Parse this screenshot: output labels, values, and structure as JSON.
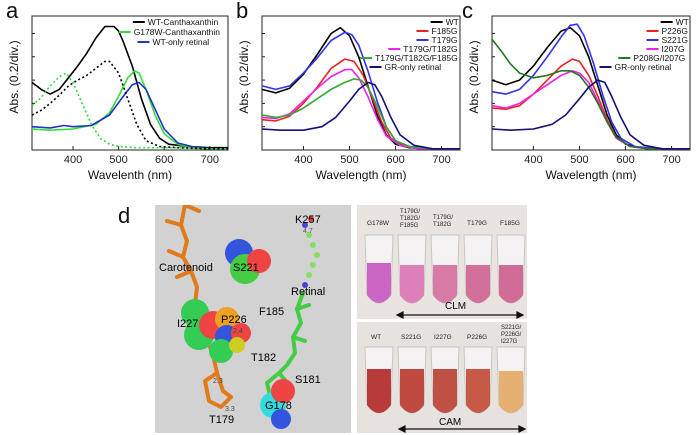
{
  "panel_labels": [
    "a",
    "b",
    "c",
    "d"
  ],
  "chart_data": [
    {
      "type": "line",
      "panel": "a",
      "xlabel": "Wavelenth (nm)",
      "ylabel": "Abs. (0.2/div.)",
      "xlim": [
        310,
        740
      ],
      "ylim": [
        0,
        1.15
      ],
      "xticks": [
        400,
        500,
        600,
        700
      ],
      "legend_position": "top-right",
      "series": [
        {
          "name": "WT-Canthaxanthin",
          "color": "#000000",
          "style": "solid",
          "x": [
            310,
            330,
            350,
            370,
            390,
            410,
            430,
            450,
            470,
            490,
            500,
            510,
            530,
            550,
            570,
            590,
            610,
            650,
            700,
            740
          ],
          "y": [
            0.58,
            0.52,
            0.48,
            0.52,
            0.62,
            0.72,
            0.83,
            0.96,
            1.06,
            1.06,
            1.02,
            0.93,
            0.72,
            0.44,
            0.22,
            0.1,
            0.05,
            0.03,
            0.02,
            0.02
          ]
        },
        {
          "name": "G178W-Canthaxanthin",
          "color": "#33dd33",
          "style": "solid",
          "x": [
            310,
            350,
            400,
            450,
            480,
            500,
            520,
            535,
            545,
            560,
            580,
            600,
            630,
            660,
            700,
            740
          ],
          "y": [
            0.18,
            0.17,
            0.18,
            0.22,
            0.32,
            0.46,
            0.62,
            0.68,
            0.66,
            0.52,
            0.3,
            0.14,
            0.05,
            0.02,
            0.01,
            0.01
          ]
        },
        {
          "name": "WT-only retinal",
          "color": "#2233cc",
          "style": "solid",
          "x": [
            310,
            350,
            380,
            400,
            440,
            480,
            510,
            530,
            545,
            560,
            580,
            600,
            630,
            670,
            700,
            740
          ],
          "y": [
            0.2,
            0.19,
            0.21,
            0.2,
            0.21,
            0.3,
            0.46,
            0.56,
            0.58,
            0.52,
            0.35,
            0.18,
            0.06,
            0.02,
            0.01,
            0.01
          ]
        },
        {
          "name": "",
          "color": "#000000",
          "style": "dotted",
          "x": [
            310,
            330,
            350,
            370,
            390,
            410,
            430,
            450,
            470,
            480,
            500,
            520,
            540,
            560,
            590,
            630,
            700,
            740
          ],
          "y": [
            0.3,
            0.34,
            0.4,
            0.47,
            0.55,
            0.6,
            0.64,
            0.7,
            0.76,
            0.76,
            0.66,
            0.44,
            0.22,
            0.08,
            0.03,
            0.02,
            0.01,
            0.01
          ]
        },
        {
          "name": "",
          "color": "#33dd33",
          "style": "dotted",
          "x": [
            310,
            330,
            350,
            370,
            385,
            400,
            420,
            440,
            460,
            480,
            500,
            540,
            580,
            640,
            700,
            740
          ],
          "y": [
            0.38,
            0.45,
            0.55,
            0.63,
            0.66,
            0.58,
            0.4,
            0.22,
            0.1,
            0.05,
            0.03,
            0.02,
            0.02,
            0.02,
            0.01,
            0.01
          ]
        }
      ]
    },
    {
      "type": "line",
      "panel": "b",
      "xlabel": "Wavelength (nm)",
      "ylabel": "Abs. (0.2/div.)",
      "xlim": [
        310,
        740
      ],
      "ylim": [
        0,
        1.15
      ],
      "xticks": [
        400,
        500,
        600,
        700
      ],
      "legend_position": "top-right",
      "series": [
        {
          "name": "WT",
          "color": "#000000",
          "style": "solid",
          "x": [
            310,
            340,
            370,
            400,
            430,
            460,
            480,
            500,
            520,
            540,
            560,
            580,
            600,
            630,
            680,
            740
          ],
          "y": [
            0.52,
            0.49,
            0.53,
            0.65,
            0.82,
            1.0,
            1.05,
            0.98,
            0.8,
            0.55,
            0.3,
            0.13,
            0.05,
            0.02,
            0.01,
            0.01
          ]
        },
        {
          "name": "F185G",
          "color": "#ee2222",
          "style": "solid",
          "x": [
            310,
            340,
            370,
            400,
            430,
            460,
            490,
            510,
            530,
            550,
            570,
            590,
            620,
            660,
            700,
            740
          ],
          "y": [
            0.26,
            0.25,
            0.29,
            0.4,
            0.54,
            0.7,
            0.78,
            0.76,
            0.64,
            0.44,
            0.24,
            0.1,
            0.03,
            0.01,
            0.01,
            0.01
          ]
        },
        {
          "name": "T179G",
          "color": "#3333ee",
          "style": "solid",
          "x": [
            310,
            340,
            370,
            400,
            430,
            460,
            490,
            505,
            520,
            540,
            560,
            580,
            600,
            630,
            680,
            740
          ],
          "y": [
            0.55,
            0.52,
            0.55,
            0.66,
            0.79,
            0.94,
            1.01,
            0.99,
            0.9,
            0.68,
            0.42,
            0.2,
            0.08,
            0.03,
            0.01,
            0.01
          ]
        },
        {
          "name": "T179G/T182G",
          "color": "#ee22ee",
          "style": "solid",
          "x": [
            310,
            340,
            370,
            400,
            430,
            460,
            490,
            505,
            520,
            540,
            560,
            580,
            610,
            650,
            700,
            740
          ],
          "y": [
            0.28,
            0.27,
            0.31,
            0.42,
            0.53,
            0.63,
            0.69,
            0.69,
            0.62,
            0.46,
            0.27,
            0.12,
            0.04,
            0.01,
            0.01,
            0.01
          ]
        },
        {
          "name": "T179G/T182G/F185G",
          "color": "#33aa33",
          "style": "solid",
          "x": [
            310,
            340,
            370,
            400,
            430,
            460,
            490,
            510,
            525,
            540,
            560,
            580,
            600,
            630,
            680,
            740
          ],
          "y": [
            0.3,
            0.28,
            0.3,
            0.36,
            0.44,
            0.52,
            0.58,
            0.61,
            0.6,
            0.54,
            0.38,
            0.2,
            0.08,
            0.03,
            0.01,
            0.01
          ]
        },
        {
          "name": "GR-only retinal",
          "color": "#111177",
          "style": "solid",
          "x": [
            310,
            350,
            400,
            440,
            470,
            500,
            520,
            540,
            555,
            570,
            590,
            610,
            640,
            680,
            740
          ],
          "y": [
            0.18,
            0.17,
            0.17,
            0.2,
            0.28,
            0.42,
            0.52,
            0.58,
            0.56,
            0.46,
            0.28,
            0.13,
            0.04,
            0.01,
            0.01
          ]
        }
      ]
    },
    {
      "type": "line",
      "panel": "c",
      "xlabel": "Wavelength (nm)",
      "ylabel": "Abs. (0.2/div.)",
      "xlim": [
        310,
        740
      ],
      "ylim": [
        0,
        1.15
      ],
      "xticks": [
        400,
        500,
        600,
        700
      ],
      "legend_position": "top-right",
      "series": [
        {
          "name": "WT",
          "color": "#000000",
          "style": "solid",
          "x": [
            310,
            340,
            370,
            400,
            430,
            460,
            480,
            500,
            520,
            540,
            560,
            580,
            600,
            630,
            680,
            740
          ],
          "y": [
            0.6,
            0.56,
            0.6,
            0.72,
            0.88,
            1.02,
            1.05,
            0.98,
            0.8,
            0.55,
            0.3,
            0.13,
            0.05,
            0.02,
            0.01,
            0.01
          ]
        },
        {
          "name": "P226G",
          "color": "#ee2222",
          "style": "solid",
          "x": [
            310,
            340,
            370,
            400,
            430,
            460,
            485,
            500,
            520,
            540,
            560,
            580,
            610,
            650,
            700,
            740
          ],
          "y": [
            0.36,
            0.35,
            0.38,
            0.48,
            0.6,
            0.72,
            0.78,
            0.76,
            0.64,
            0.46,
            0.26,
            0.11,
            0.03,
            0.01,
            0.01,
            0.01
          ]
        },
        {
          "name": "S221G",
          "color": "#3333ee",
          "style": "solid",
          "x": [
            310,
            340,
            370,
            400,
            430,
            460,
            480,
            495,
            510,
            530,
            550,
            570,
            590,
            620,
            670,
            740
          ],
          "y": [
            0.5,
            0.48,
            0.52,
            0.64,
            0.8,
            0.97,
            1.07,
            1.08,
            0.98,
            0.75,
            0.48,
            0.24,
            0.1,
            0.03,
            0.01,
            0.01
          ]
        },
        {
          "name": "I207G",
          "color": "#ee22ee",
          "style": "solid",
          "x": [
            310,
            340,
            370,
            400,
            430,
            460,
            485,
            500,
            520,
            540,
            560,
            580,
            610,
            650,
            700,
            740
          ],
          "y": [
            0.38,
            0.36,
            0.4,
            0.48,
            0.56,
            0.64,
            0.68,
            0.66,
            0.58,
            0.42,
            0.24,
            0.1,
            0.03,
            0.01,
            0.01,
            0.01
          ]
        },
        {
          "name": "P208G/I207G",
          "color": "#227722",
          "style": "solid",
          "x": [
            310,
            330,
            350,
            370,
            400,
            430,
            460,
            480,
            500,
            520,
            540,
            560,
            580,
            610,
            650,
            740
          ],
          "y": [
            0.95,
            0.85,
            0.74,
            0.66,
            0.62,
            0.64,
            0.68,
            0.68,
            0.64,
            0.54,
            0.4,
            0.24,
            0.11,
            0.03,
            0.01,
            0.01
          ]
        },
        {
          "name": "GR-only retinal",
          "color": "#111177",
          "style": "solid",
          "x": [
            310,
            350,
            400,
            440,
            470,
            500,
            520,
            540,
            555,
            570,
            590,
            610,
            640,
            680,
            740
          ],
          "y": [
            0.18,
            0.17,
            0.18,
            0.22,
            0.3,
            0.44,
            0.54,
            0.6,
            0.58,
            0.46,
            0.28,
            0.13,
            0.04,
            0.01,
            0.01
          ]
        }
      ]
    }
  ],
  "panel_d": {
    "residue_labels": [
      "K257",
      "S221",
      "Carotenoid",
      "Retinal",
      "F185",
      "P226",
      "I227",
      "T182",
      "S181",
      "G178",
      "T179"
    ],
    "distance_labels": [
      "4.7",
      "2.4",
      "2.3",
      "3.3"
    ],
    "tube_top_labels": [
      "G178W",
      "T179G/\nT182G/\nF185G",
      "T179G/\nT182G",
      "T179G",
      "F185G"
    ],
    "tube_bottom_labels": [
      "WT",
      "S221G",
      "I227G",
      "P226G",
      "S221G/\nP226G/\nI227G"
    ],
    "condition_top": "CLM",
    "condition_bottom": "CAM"
  }
}
